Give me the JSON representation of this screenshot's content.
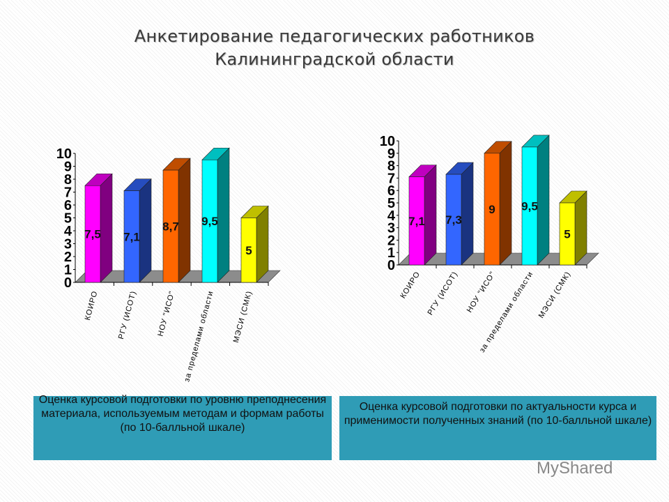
{
  "title": {
    "line1": "Анкетирование педагогических работников",
    "line2": "Калининградской области"
  },
  "chart_data": [
    {
      "type": "bar",
      "categories": [
        "КОИРО",
        "РГУ (ИСОТ)",
        "НОУ \"ИСО\"",
        "за пределами области",
        "МЭСИ (СМК)"
      ],
      "values": [
        7.5,
        7.1,
        8.7,
        9.5,
        5
      ],
      "data_labels": [
        "7,5",
        "7,1",
        "8,7",
        "9,5",
        "5"
      ],
      "ylim": [
        0,
        10
      ],
      "yticks": [
        "0",
        "1",
        "2",
        "3",
        "4",
        "5",
        "6",
        "7",
        "8",
        "9",
        "10"
      ],
      "colors": [
        "#ff00ff",
        "#3366ff",
        "#ff6600",
        "#00ffff",
        "#ffff00"
      ],
      "style": "3d",
      "caption": "Оценка курсовой подготовки по уровню преподнесения материала, используемым методам и формам работы (по 10-балльной шкале)"
    },
    {
      "type": "bar",
      "categories": [
        "КОИРО",
        "РГУ (ИСОТ)",
        "НОУ \"ИСО\"",
        "за пределами области",
        "МЭСИ (СМК)"
      ],
      "values": [
        7.1,
        7.3,
        9,
        9.5,
        5
      ],
      "data_labels": [
        "7,1",
        "7,3",
        "9",
        "9,5",
        "5"
      ],
      "ylim": [
        0,
        10
      ],
      "yticks": [
        "0",
        "1",
        "2",
        "3",
        "4",
        "5",
        "6",
        "7",
        "8",
        "9",
        "10"
      ],
      "colors": [
        "#ff00ff",
        "#3366ff",
        "#ff6600",
        "#00ffff",
        "#ffff00"
      ],
      "style": "3d",
      "caption": "Оценка курсовой подготовки по актуальности курса и применимости полученных знаний (по 10-балльной шкале)"
    }
  ],
  "watermark": "MyShared"
}
